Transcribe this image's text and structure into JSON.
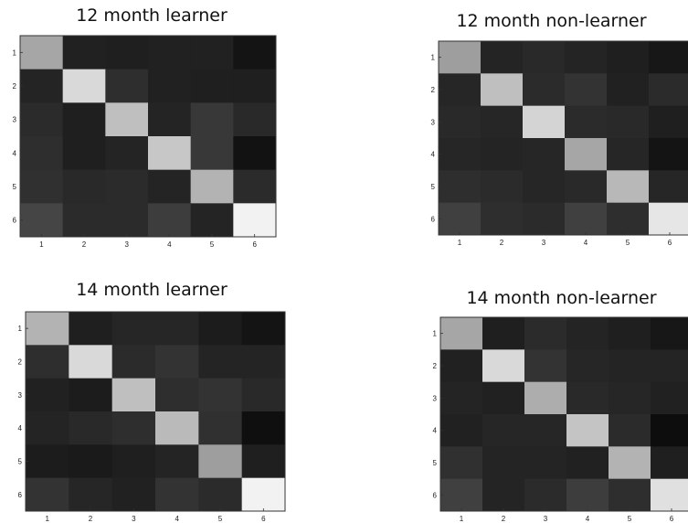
{
  "chart_data": [
    {
      "type": "heatmap",
      "title": "12 month learner",
      "x": [
        "1",
        "2",
        "3",
        "4",
        "5",
        "6"
      ],
      "y": [
        "1",
        "2",
        "3",
        "4",
        "5",
        "6"
      ],
      "colormap": "gray",
      "values": [
        [
          0.65,
          0.13,
          0.12,
          0.13,
          0.13,
          0.08
        ],
        [
          0.14,
          0.85,
          0.18,
          0.13,
          0.12,
          0.12
        ],
        [
          0.17,
          0.12,
          0.75,
          0.14,
          0.22,
          0.16
        ],
        [
          0.18,
          0.12,
          0.14,
          0.78,
          0.22,
          0.07
        ],
        [
          0.19,
          0.16,
          0.17,
          0.14,
          0.7,
          0.17
        ],
        [
          0.27,
          0.17,
          0.17,
          0.24,
          0.14,
          0.95
        ]
      ]
    },
    {
      "type": "heatmap",
      "title": "12 month non-learner",
      "x": [
        "1",
        "2",
        "3",
        "4",
        "5",
        "6"
      ],
      "y": [
        "1",
        "2",
        "3",
        "4",
        "5",
        "6"
      ],
      "colormap": "gray",
      "values": [
        [
          0.62,
          0.14,
          0.16,
          0.14,
          0.12,
          0.09
        ],
        [
          0.15,
          0.75,
          0.17,
          0.2,
          0.13,
          0.17
        ],
        [
          0.16,
          0.15,
          0.83,
          0.17,
          0.16,
          0.12
        ],
        [
          0.15,
          0.14,
          0.15,
          0.65,
          0.15,
          0.08
        ],
        [
          0.18,
          0.17,
          0.15,
          0.16,
          0.72,
          0.15
        ],
        [
          0.25,
          0.18,
          0.17,
          0.25,
          0.18,
          0.9
        ]
      ]
    },
    {
      "type": "heatmap",
      "title": "14 month learner",
      "x": [
        "1",
        "2",
        "3",
        "4",
        "5",
        "6"
      ],
      "y": [
        "1",
        "2",
        "3",
        "4",
        "5",
        "6"
      ],
      "colormap": "gray",
      "values": [
        [
          0.7,
          0.12,
          0.15,
          0.15,
          0.11,
          0.08
        ],
        [
          0.18,
          0.85,
          0.17,
          0.2,
          0.14,
          0.14
        ],
        [
          0.13,
          0.11,
          0.75,
          0.18,
          0.2,
          0.16
        ],
        [
          0.14,
          0.16,
          0.18,
          0.73,
          0.19,
          0.06
        ],
        [
          0.11,
          0.1,
          0.12,
          0.14,
          0.62,
          0.12
        ],
        [
          0.2,
          0.15,
          0.13,
          0.2,
          0.17,
          0.95
        ]
      ]
    },
    {
      "type": "heatmap",
      "title": "14 month non-learner",
      "x": [
        "1",
        "2",
        "3",
        "4",
        "5",
        "6"
      ],
      "y": [
        "1",
        "2",
        "3",
        "4",
        "5",
        "6"
      ],
      "colormap": "gray",
      "values": [
        [
          0.65,
          0.12,
          0.17,
          0.14,
          0.12,
          0.09
        ],
        [
          0.13,
          0.85,
          0.2,
          0.15,
          0.14,
          0.14
        ],
        [
          0.14,
          0.13,
          0.68,
          0.16,
          0.15,
          0.13
        ],
        [
          0.13,
          0.15,
          0.15,
          0.77,
          0.17,
          0.05
        ],
        [
          0.19,
          0.14,
          0.14,
          0.13,
          0.7,
          0.12
        ],
        [
          0.25,
          0.14,
          0.17,
          0.24,
          0.18,
          0.88
        ]
      ]
    }
  ]
}
